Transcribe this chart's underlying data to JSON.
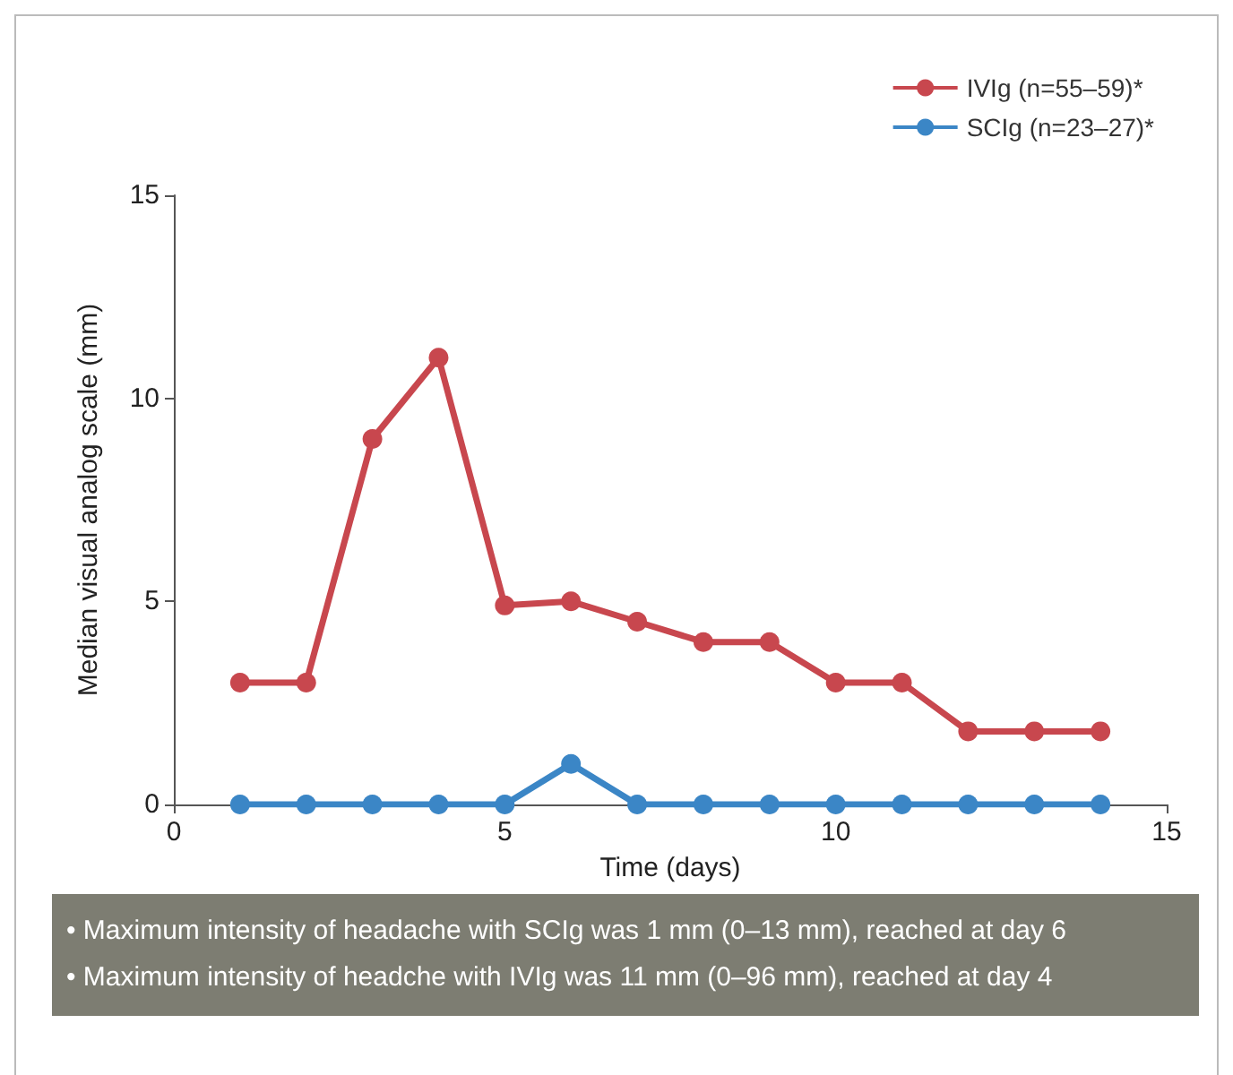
{
  "chart_data": {
    "type": "line",
    "xlabel": "Time (days)",
    "ylabel": "Median visual analog scale (mm)",
    "x": [
      1,
      2,
      3,
      4,
      5,
      6,
      7,
      8,
      9,
      10,
      11,
      12,
      13,
      14
    ],
    "series": [
      {
        "name": "IVIg (n=55–59)*",
        "color": "#c8474e",
        "values": [
          3,
          3,
          9,
          11,
          4.9,
          5,
          4.5,
          4,
          4,
          3,
          3,
          1.8,
          1.8,
          1.8
        ]
      },
      {
        "name": "SCIg (n=23–27)*",
        "color": "#3b86c6",
        "values": [
          0,
          0,
          0,
          0,
          0,
          1,
          0,
          0,
          0,
          0,
          0,
          0,
          0,
          0
        ]
      }
    ],
    "xlim": [
      0,
      15
    ],
    "xticks": [
      0,
      5,
      10,
      15
    ],
    "ylim": [
      0,
      15
    ],
    "yticks": [
      0,
      5,
      10,
      15
    ],
    "grid": false,
    "legend": "top right",
    "marker": "circle",
    "line_style": "solid",
    "annotations": [
      "• Maximum intensity of headache with SCIg was 1 mm (0–13 mm), reached at day 6",
      "• Maximum intensity of headche with IVIg was 11 mm (0–96 mm), reached at day 4"
    ]
  }
}
